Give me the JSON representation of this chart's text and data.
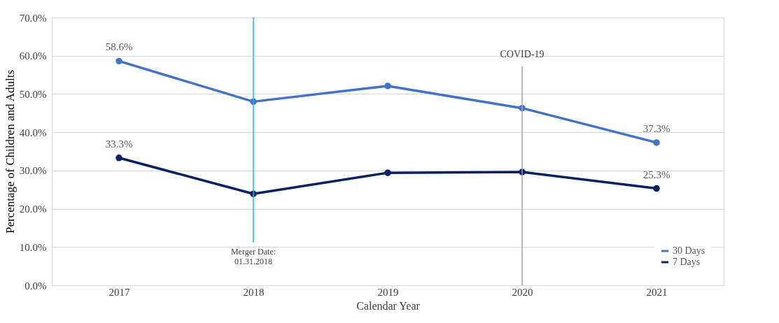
{
  "chart_data": {
    "type": "line",
    "xlabel": "Calendar Year",
    "ylabel": "Percentage of Children and Adults",
    "categories": [
      "2017",
      "2018",
      "2019",
      "2020",
      "2021"
    ],
    "series": [
      {
        "name": "30 Days",
        "color": "#4472c4",
        "values": [
          58.6,
          48.0,
          52.1,
          46.3,
          37.3
        ],
        "value_labels": [
          "58.6%",
          null,
          null,
          null,
          "37.3%"
        ]
      },
      {
        "name": "7 Days",
        "color": "#0d2060",
        "values": [
          33.3,
          23.9,
          29.4,
          29.6,
          25.3
        ],
        "value_labels": [
          "33.3%",
          null,
          null,
          null,
          "25.3%"
        ]
      }
    ],
    "ylim": [
      0,
      70
    ],
    "yticks": [
      {
        "value": 0,
        "label": "0.0%"
      },
      {
        "value": 10,
        "label": "10.0%"
      },
      {
        "value": 20,
        "label": "20.0%"
      },
      {
        "value": 30,
        "label": "30.0%"
      },
      {
        "value": 40,
        "label": "40.0%"
      },
      {
        "value": 50,
        "label": "50.0%"
      },
      {
        "value": 60,
        "label": "60.0%"
      },
      {
        "value": 70,
        "label": "70.0%"
      }
    ],
    "ref_lines": [
      {
        "axis": "x",
        "value": "2018",
        "label": "Merger Date:\n01.31.2018",
        "color": "#17becf"
      },
      {
        "axis": "x",
        "value": "2020",
        "label": "COVID-19",
        "color": "#a6a6a6"
      }
    ],
    "grid": "y",
    "legend": "bottom right",
    "marker": "circle",
    "line_style": "solid"
  }
}
